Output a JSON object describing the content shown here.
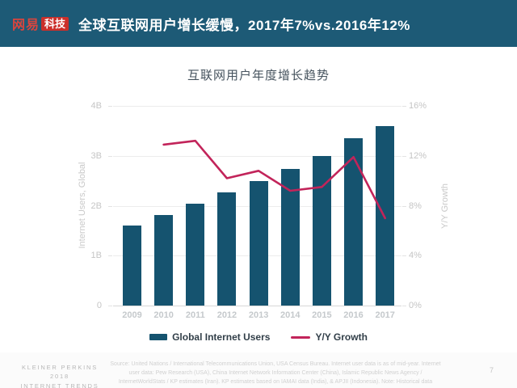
{
  "header": {
    "logo_brand": "网易",
    "logo_sub": "科技",
    "title": "全球互联网用户增长缓慢，2017年7%vs.2016年12%"
  },
  "chart": {
    "title": "互联网用户年度增长趋势",
    "left_axis": {
      "title": "Internet Users, Global",
      "ticks": [
        "4B",
        "3B",
        "2B",
        "1B",
        "0"
      ]
    },
    "right_axis": {
      "title": "Y/Y Growth",
      "ticks": [
        "16%",
        "12%",
        "8%",
        "4%",
        "0%"
      ]
    },
    "legend": [
      {
        "label": "Global Internet Users",
        "type": "bar",
        "color": "#15536f"
      },
      {
        "label": "Y/Y Growth",
        "type": "line",
        "color": "#c2245a"
      }
    ]
  },
  "chart_data": {
    "type": "bar+line",
    "title": "互联网用户年度增长趋势",
    "categories": [
      "2009",
      "2010",
      "2011",
      "2012",
      "2013",
      "2014",
      "2015",
      "2016",
      "2017"
    ],
    "series": [
      {
        "name": "Global Internet Users",
        "type": "bar",
        "axis": "left",
        "unit": "B",
        "values": [
          1.6,
          1.82,
          2.04,
          2.26,
          2.5,
          2.73,
          3.0,
          3.35,
          3.6
        ]
      },
      {
        "name": "Y/Y Growth",
        "type": "line",
        "axis": "right",
        "unit": "%",
        "x": [
          "2010",
          "2011",
          "2012",
          "2013",
          "2014",
          "2015",
          "2016",
          "2017"
        ],
        "values": [
          12.9,
          13.2,
          10.2,
          10.8,
          9.2,
          9.5,
          11.9,
          7.0
        ]
      }
    ],
    "xlabel": "",
    "left_ylabel": "Internet Users, Global",
    "right_ylabel": "Y/Y Growth",
    "left_ylim": [
      0,
      4
    ],
    "right_ylim": [
      0,
      16
    ],
    "grid": true,
    "legend_position": "bottom"
  },
  "footer": {
    "brand_lines": [
      "KLEINER PERKINS",
      "2018",
      "INTERNET TRENDS"
    ],
    "source_text": "Source: United Nations / International Telecommunications Union, USA Census Bureau. Internet user data is as of mid-year. Internet user data: Pew Research (USA), China Internet Network Information Center (China), Islamic Republic News Agency / InternetWorldStats / KP estimates (Iran). KP estimates based on IAMAI data (India), & APJII (Indonesia). Note: Historical data (particularly in Sub-Saharan Africa) revised by ITU in 2017 to better account for dual-SIM subscriptions (i.e. two Internet subscriptions per single smartphone user).",
    "page_number": "7"
  },
  "colors": {
    "header_bg": "#1d5a76",
    "bar": "#15536f",
    "line": "#c2245a",
    "logo_red": "#cb2f2a",
    "logo_brand_red": "#d9453e"
  }
}
